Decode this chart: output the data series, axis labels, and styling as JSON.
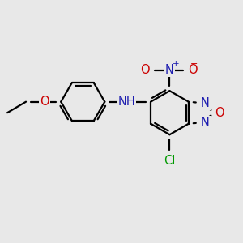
{
  "background_color": "#e8e8e8",
  "figsize": [
    3.0,
    3.0
  ],
  "dpi": 100,
  "xlim": [
    -0.5,
    10.5
  ],
  "ylim": [
    -0.5,
    10.5
  ],
  "bond_lw": 1.6,
  "font_size": 10.5
}
